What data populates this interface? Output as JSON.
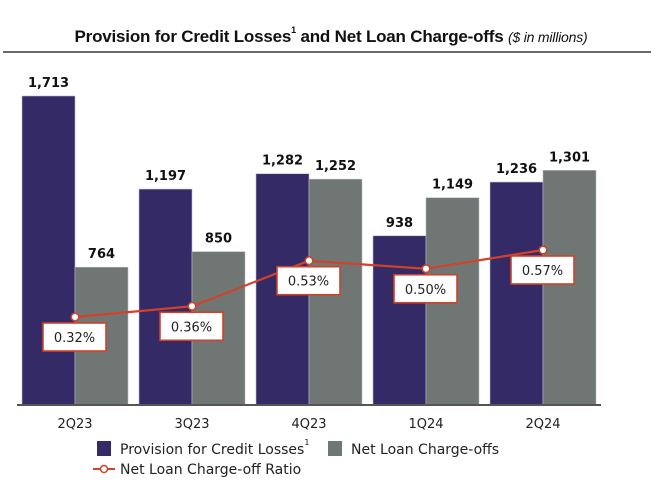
{
  "title": {
    "main": "Provision for Credit Losses",
    "footnote": "1",
    "rest": " and Net Loan Charge-offs ",
    "unit": "($ in millions)"
  },
  "colors": {
    "provision": "#342a66",
    "charge_offs": "#6f7673",
    "ratio_line": "#d0422a"
  },
  "legend": {
    "provision": "Provision for Credit Losses",
    "provision_footnote": "1",
    "charge_offs": "Net Loan Charge-offs",
    "ratio": "Net Loan Charge-off Ratio"
  },
  "chart_data": {
    "type": "bar",
    "title": "Provision for Credit Losses and Net Loan Charge-offs ($ in millions)",
    "xlabel": "",
    "ylabel": "",
    "ylim": [
      0,
      1713
    ],
    "grid": false,
    "legend_position": "bottom",
    "categories": [
      "2Q23",
      "3Q23",
      "4Q23",
      "1Q24",
      "2Q24"
    ],
    "series": [
      {
        "name": "Provision for Credit Losses",
        "type": "bar",
        "values": [
          1713,
          1197,
          1282,
          938,
          1236
        ],
        "labels": [
          "1,713",
          "1,197",
          "1,282",
          "938",
          "1,236"
        ]
      },
      {
        "name": "Net Loan Charge-offs",
        "type": "bar",
        "values": [
          764,
          850,
          1252,
          1149,
          1301
        ],
        "labels": [
          "764",
          "850",
          "1,252",
          "1,149",
          "1,301"
        ]
      },
      {
        "name": "Net Loan Charge-off Ratio",
        "type": "line",
        "unit": "%",
        "values": [
          0.32,
          0.36,
          0.53,
          0.5,
          0.57
        ],
        "labels": [
          "0.32%",
          "0.36%",
          "0.53%",
          "0.50%",
          "0.57%"
        ]
      }
    ]
  }
}
